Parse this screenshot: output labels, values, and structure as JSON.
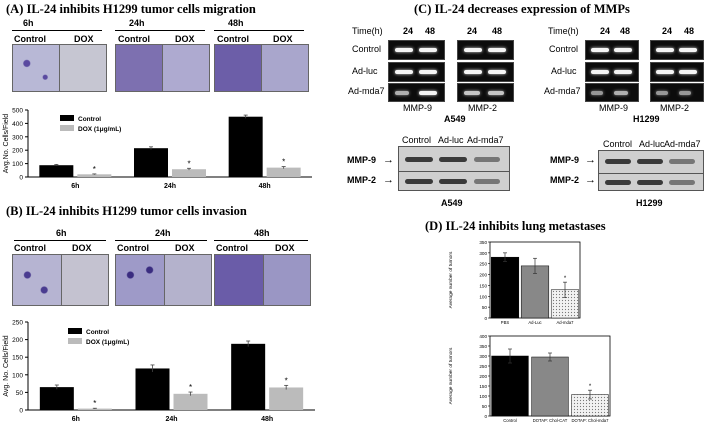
{
  "panelA": {
    "title": "(A) IL-24 inhibits H1299 tumor cells migration",
    "times": [
      "6h",
      "24h",
      "48h"
    ],
    "col_labels": [
      "Control",
      "DOX"
    ]
  },
  "panelB": {
    "title": "(B) IL-24 inhibits H1299 tumor cells invasion",
    "times": [
      "6h",
      "24h",
      "48h"
    ],
    "col_labels": [
      "Control",
      "DOX"
    ]
  },
  "panelC": {
    "title": "(C) IL-24 decreases expression of MMPs",
    "time_label": "Time(h)",
    "hours": [
      "24",
      "48",
      "24",
      "48"
    ],
    "rows": [
      "Control",
      "Ad-luc",
      "Ad-mda7"
    ],
    "mmp_labels": [
      "MMP-9",
      "MMP-2"
    ],
    "cell_lines": [
      "A549",
      "H1299"
    ],
    "wb_cols": [
      "Control",
      "Ad-luc",
      "Ad-mda7"
    ],
    "wb_rows": [
      "MMP-9",
      "MMP-2"
    ]
  },
  "panelD": {
    "title": "(D) IL-24 inhibits lung metastases"
  },
  "chart_data": [
    {
      "id": "A",
      "type": "bar",
      "categories": [
        "6h",
        "24h",
        "48h"
      ],
      "series": [
        {
          "name": "Control",
          "values": [
            88,
            215,
            450
          ],
          "color": "#000000"
        },
        {
          "name": "DOX (1μg/mL)",
          "values": [
            20,
            58,
            70
          ],
          "color": "#bbbbbb"
        }
      ],
      "errors": [
        [
          6,
          10,
          12
        ],
        [
          3,
          7,
          8
        ]
      ],
      "sig": [
        "*",
        "*",
        "*"
      ],
      "ylabel": "Avg.No. Cells/Field",
      "ylim": [
        0,
        500
      ],
      "yticks": [
        0,
        100,
        200,
        300,
        400,
        500
      ]
    },
    {
      "id": "B",
      "type": "bar",
      "categories": [
        "6h",
        "24h",
        "48h"
      ],
      "series": [
        {
          "name": "Control",
          "values": [
            65,
            118,
            188
          ],
          "color": "#000000"
        },
        {
          "name": "DOX (1μg/mL)",
          "values": [
            4,
            46,
            64
          ],
          "color": "#bbbbbb"
        }
      ],
      "errors": [
        [
          6,
          10,
          8
        ],
        [
          1,
          5,
          6
        ]
      ],
      "sig": [
        "*",
        "*",
        "*"
      ],
      "ylabel": "Avg. No. Cells/Field",
      "ylim": [
        0,
        250
      ],
      "yticks": [
        0,
        50,
        100,
        150,
        200,
        250
      ]
    },
    {
      "id": "D1",
      "type": "bar",
      "categories": [
        "PBS",
        "Ad-Luc",
        "Ad-mda7"
      ],
      "values": [
        280,
        240,
        130
      ],
      "errors": [
        20,
        35,
        35
      ],
      "fills": [
        "#000000",
        "#888888",
        "#dddddd"
      ],
      "sig": [
        "",
        "",
        "*"
      ],
      "ylabel": "Average number of tumors",
      "ylim": [
        0,
        350
      ],
      "yticks": [
        0,
        50,
        100,
        150,
        200,
        250,
        300,
        350
      ]
    },
    {
      "id": "D2",
      "type": "bar",
      "categories": [
        "Control",
        "DOTAP: Chol-CAT",
        "DOTAP: Chol-mda7"
      ],
      "values": [
        300,
        295,
        107
      ],
      "errors": [
        35,
        20,
        22
      ],
      "fills": [
        "#000000",
        "#888888",
        "#dddddd"
      ],
      "sig": [
        "",
        "",
        "*"
      ],
      "ylabel": "Average number of tumors",
      "ylim": [
        0,
        400
      ],
      "yticks": [
        0,
        50,
        100,
        150,
        200,
        250,
        300,
        350,
        400
      ]
    }
  ]
}
